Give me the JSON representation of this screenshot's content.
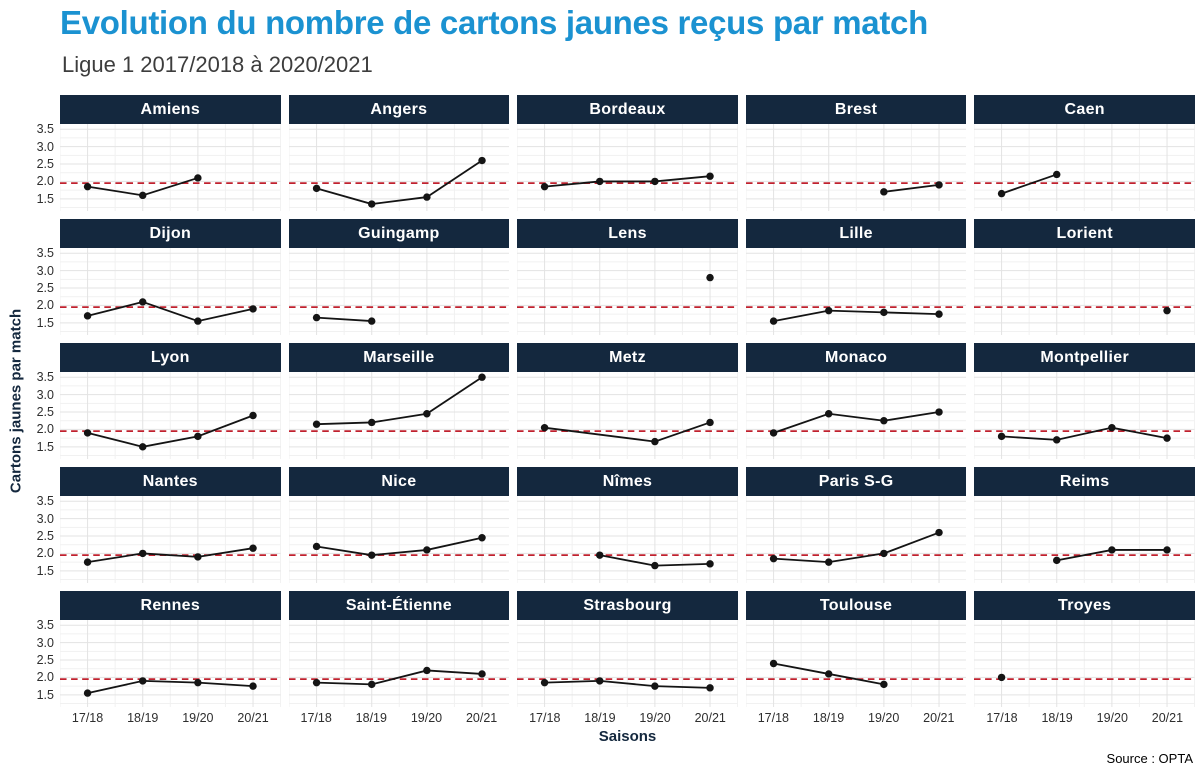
{
  "header": {
    "title": "Evolution du nombre de cartons jaunes reçus par match",
    "subtitle": "Ligue 1 2017/2018 à 2020/2021"
  },
  "axes": {
    "y_title": "Cartons jaunes par match",
    "x_title": "Saisons"
  },
  "source": "Source : OPTA",
  "colors": {
    "background": "#ffffff",
    "title_blue": "#1b92d1",
    "navy": "#14283e",
    "subtitle_gray": "#3d3d3d",
    "tick_gray": "#2e2e2e",
    "grid_major": "#e3e3e3",
    "grid_minor": "#f1f1f1",
    "data_black": "#141414",
    "reference_red": "#c0212e"
  },
  "chart_data": {
    "type": "line",
    "title": "Evolution du nombre de cartons jaunes reçus par match",
    "subtitle": "Ligue 1 2017/2018 à 2020/2021",
    "xlabel": "Saisons",
    "ylabel": "Cartons jaunes par match",
    "x_categories": [
      "17/18",
      "18/19",
      "19/20",
      "20/21"
    ],
    "y_ticks": [
      1.5,
      2.0,
      2.5,
      3.0,
      3.5
    ],
    "ylim": [
      1.15,
      3.65
    ],
    "grid": true,
    "legend": "none",
    "reference_line": {
      "value": 1.95,
      "style": "dashed",
      "color": "#c0212e"
    },
    "facets": [
      {
        "name": "Amiens",
        "x": [
          0,
          1,
          2
        ],
        "values": [
          1.85,
          1.6,
          2.1
        ]
      },
      {
        "name": "Angers",
        "x": [
          0,
          1,
          2,
          3
        ],
        "values": [
          1.8,
          1.35,
          1.55,
          2.6
        ]
      },
      {
        "name": "Bordeaux",
        "x": [
          0,
          1,
          2,
          3
        ],
        "values": [
          1.85,
          2.0,
          2.0,
          2.15
        ]
      },
      {
        "name": "Brest",
        "x": [
          2,
          3
        ],
        "values": [
          1.7,
          1.9
        ]
      },
      {
        "name": "Caen",
        "x": [
          0,
          1
        ],
        "values": [
          1.65,
          2.2
        ]
      },
      {
        "name": "Dijon",
        "x": [
          0,
          1,
          2,
          3
        ],
        "values": [
          1.7,
          2.1,
          1.55,
          1.9
        ]
      },
      {
        "name": "Guingamp",
        "x": [
          0,
          1
        ],
        "values": [
          1.65,
          1.55
        ]
      },
      {
        "name": "Lens",
        "x": [
          3
        ],
        "values": [
          2.8
        ]
      },
      {
        "name": "Lille",
        "x": [
          0,
          1,
          2,
          3
        ],
        "values": [
          1.55,
          1.85,
          1.8,
          1.75
        ]
      },
      {
        "name": "Lorient",
        "x": [
          3
        ],
        "values": [
          1.85
        ]
      },
      {
        "name": "Lyon",
        "x": [
          0,
          1,
          2,
          3
        ],
        "values": [
          1.9,
          1.5,
          1.8,
          2.4
        ]
      },
      {
        "name": "Marseille",
        "x": [
          0,
          1,
          2,
          3
        ],
        "values": [
          2.15,
          2.2,
          2.45,
          3.5
        ]
      },
      {
        "name": "Metz",
        "x": [
          0,
          2,
          3
        ],
        "values": [
          2.05,
          1.65,
          2.2
        ]
      },
      {
        "name": "Monaco",
        "x": [
          0,
          1,
          2,
          3
        ],
        "values": [
          1.9,
          2.45,
          2.25,
          2.5
        ]
      },
      {
        "name": "Montpellier",
        "x": [
          0,
          1,
          2,
          3
        ],
        "values": [
          1.8,
          1.7,
          2.05,
          1.75
        ]
      },
      {
        "name": "Nantes",
        "x": [
          0,
          1,
          2,
          3
        ],
        "values": [
          1.75,
          2.0,
          1.9,
          2.15
        ]
      },
      {
        "name": "Nice",
        "x": [
          0,
          1,
          2,
          3
        ],
        "values": [
          2.2,
          1.95,
          2.1,
          2.45
        ]
      },
      {
        "name": "Nîmes",
        "x": [
          1,
          2,
          3
        ],
        "values": [
          1.95,
          1.65,
          1.7
        ]
      },
      {
        "name": "Paris S-G",
        "x": [
          0,
          1,
          2,
          3
        ],
        "values": [
          1.85,
          1.75,
          2.0,
          2.6
        ]
      },
      {
        "name": "Reims",
        "x": [
          1,
          2,
          3
        ],
        "values": [
          1.8,
          2.1,
          2.1
        ]
      },
      {
        "name": "Rennes",
        "x": [
          0,
          1,
          2,
          3
        ],
        "values": [
          1.55,
          1.9,
          1.85,
          1.75
        ]
      },
      {
        "name": "Saint-Étienne",
        "x": [
          0,
          1,
          2,
          3
        ],
        "values": [
          1.85,
          1.8,
          2.2,
          2.1
        ]
      },
      {
        "name": "Strasbourg",
        "x": [
          0,
          1,
          2,
          3
        ],
        "values": [
          1.85,
          1.9,
          1.75,
          1.7
        ]
      },
      {
        "name": "Toulouse",
        "x": [
          0,
          1,
          2
        ],
        "values": [
          2.4,
          2.1,
          1.8
        ]
      },
      {
        "name": "Troyes",
        "x": [
          0
        ],
        "values": [
          2.0
        ]
      }
    ]
  }
}
